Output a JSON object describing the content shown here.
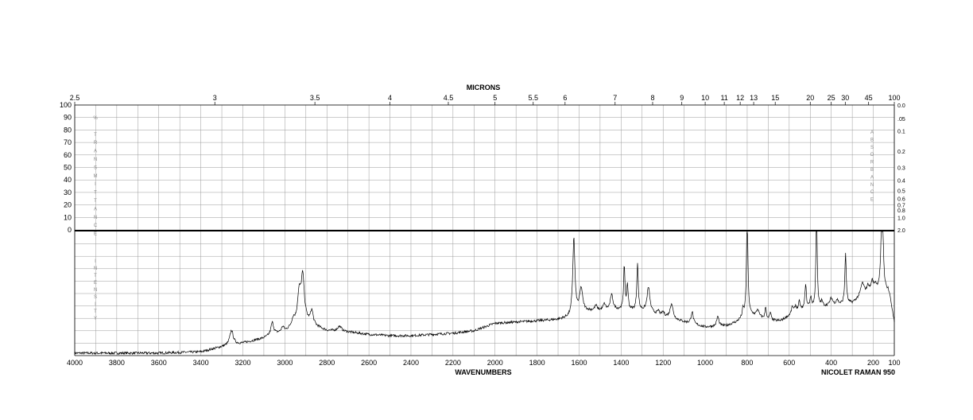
{
  "chart_data": {
    "type": "line",
    "top_axis_title": "MICRONS",
    "top_axis_ticks": [
      "2.5",
      "3",
      "3.5",
      "4",
      "4.5",
      "5",
      "5.5",
      "6",
      "7",
      "8",
      "9",
      "10",
      "11",
      "12",
      "13",
      "15",
      "20",
      "25",
      "30",
      "45",
      "100"
    ],
    "top_axis_values": [
      2.5,
      3,
      3.5,
      4,
      4.5,
      5,
      5.5,
      6,
      7,
      8,
      9,
      10,
      11,
      12,
      13,
      15,
      20,
      25,
      30,
      45,
      100
    ],
    "bottom_axis_title": "WAVENUMBERS",
    "bottom_axis_ticks": [
      "4000",
      "3800",
      "3600",
      "3400",
      "3200",
      "3000",
      "2800",
      "2600",
      "2400",
      "2200",
      "2000",
      "1800",
      "1600",
      "1400",
      "1200",
      "1000",
      "800",
      "600",
      "400",
      "200",
      "100"
    ],
    "bottom_axis_values": [
      4000,
      3800,
      3600,
      3400,
      3200,
      3000,
      2800,
      2600,
      2400,
      2200,
      2000,
      1800,
      1600,
      1400,
      1200,
      1000,
      800,
      600,
      400,
      200,
      100
    ],
    "left_axis_ticks": [
      "100",
      "90",
      "80",
      "70",
      "60",
      "50",
      "40",
      "30",
      "20",
      "10",
      "0"
    ],
    "right_axis_ticks": [
      "0.0",
      ".05",
      "0.1",
      "0.2",
      "0.3",
      "0.4",
      "0.5",
      "0.6",
      "0.7",
      "0.8",
      "1.0",
      "2.0"
    ],
    "right_axis_values": [
      0.0,
      0.05,
      0.1,
      0.2,
      0.3,
      0.4,
      0.5,
      0.6,
      0.7,
      0.8,
      1.0,
      2.0
    ],
    "left_vertical_label": "% TRANSMITTANCE",
    "right_vertical_label": "ABSORBANCE",
    "lower_vertical_label": "INTENSITY",
    "instrument_label": "NICOLET RAMAN 950",
    "xlim": [
      4000,
      100
    ],
    "intensity_lim": [
      0,
      100
    ],
    "grid": true,
    "colors": {
      "line": "#000000",
      "grid": "#9a9a9a",
      "divider": "#000000",
      "vertical_labels": "#888888"
    },
    "series": [
      {
        "baseline": [
          [
            4000,
            2
          ],
          [
            3800,
            2
          ],
          [
            3600,
            2
          ],
          [
            3400,
            3
          ],
          [
            3300,
            7
          ],
          [
            3200,
            10
          ],
          [
            3100,
            14
          ],
          [
            3050,
            17
          ],
          [
            3000,
            19
          ],
          [
            2960,
            22
          ],
          [
            2900,
            26
          ],
          [
            2800,
            20
          ],
          [
            2700,
            19
          ],
          [
            2600,
            17
          ],
          [
            2500,
            16
          ],
          [
            2400,
            16
          ],
          [
            2300,
            17
          ],
          [
            2200,
            18
          ],
          [
            2100,
            20
          ],
          [
            2000,
            26
          ],
          [
            1900,
            27
          ],
          [
            1800,
            28
          ],
          [
            1700,
            29
          ],
          [
            1640,
            31
          ],
          [
            1600,
            36
          ],
          [
            1500,
            36
          ],
          [
            1400,
            37
          ],
          [
            1300,
            36
          ],
          [
            1200,
            32
          ],
          [
            1100,
            27
          ],
          [
            1000,
            23
          ],
          [
            900,
            24
          ],
          [
            850,
            27
          ],
          [
            800,
            33
          ],
          [
            750,
            32
          ],
          [
            700,
            28
          ],
          [
            640,
            28
          ],
          [
            600,
            32
          ],
          [
            550,
            36
          ],
          [
            500,
            38
          ],
          [
            450,
            39
          ],
          [
            400,
            40
          ],
          [
            350,
            41
          ],
          [
            300,
            42
          ],
          [
            250,
            48
          ],
          [
            200,
            50
          ],
          [
            170,
            52
          ],
          [
            140,
            50
          ],
          [
            120,
            46
          ],
          [
            100,
            26
          ]
        ],
        "peaks": [
          [
            3254,
            12,
            10
          ],
          [
            3060,
            10,
            8
          ],
          [
            3010,
            4,
            7
          ],
          [
            2960,
            6,
            10
          ],
          [
            2932,
            24,
            10
          ],
          [
            2915,
            36,
            9
          ],
          [
            2872,
            11,
            8
          ],
          [
            2740,
            4,
            12
          ],
          [
            1625,
            62,
            6
          ],
          [
            1590,
            18,
            8
          ],
          [
            1520,
            4,
            7
          ],
          [
            1480,
            5,
            7
          ],
          [
            1445,
            12,
            8
          ],
          [
            1385,
            36,
            3.5
          ],
          [
            1370,
            20,
            4
          ],
          [
            1322,
            38,
            4
          ],
          [
            1270,
            20,
            8
          ],
          [
            1222,
            3,
            5
          ],
          [
            1200,
            3,
            5
          ],
          [
            1160,
            12,
            8
          ],
          [
            1062,
            10,
            6
          ],
          [
            940,
            8,
            6
          ],
          [
            820,
            6,
            4
          ],
          [
            800,
            80,
            4
          ],
          [
            750,
            5,
            6
          ],
          [
            712,
            10,
            4
          ],
          [
            690,
            6,
            5
          ],
          [
            585,
            6,
            5
          ],
          [
            570,
            5,
            5
          ],
          [
            552,
            7,
            5
          ],
          [
            522,
            20,
            4
          ],
          [
            498,
            8,
            5
          ],
          [
            470,
            98,
            3
          ],
          [
            445,
            4,
            5
          ],
          [
            400,
            6,
            8
          ],
          [
            372,
            4,
            6
          ],
          [
            332,
            40,
            4
          ],
          [
            252,
            10,
            10
          ],
          [
            225,
            6,
            7
          ],
          [
            205,
            9,
            7
          ],
          [
            190,
            5,
            6
          ],
          [
            158,
            92,
            5
          ],
          [
            130,
            4,
            5
          ]
        ],
        "noise": 1.0
      }
    ]
  }
}
